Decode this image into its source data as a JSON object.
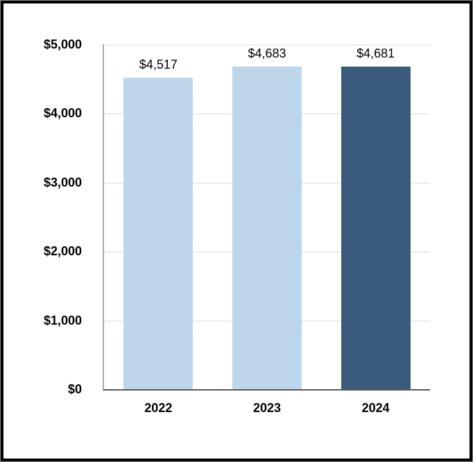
{
  "frame": {
    "outer_edge_color": "#8e8e8e",
    "border_color": "#000000",
    "background": "#ffffff"
  },
  "chart_data": {
    "type": "bar",
    "categories": [
      "2022",
      "2023",
      "2024"
    ],
    "values": [
      4517,
      4683,
      4681
    ],
    "value_labels": [
      "$4,517",
      "$4,683",
      "$4,681"
    ],
    "ylim": [
      0,
      5000
    ],
    "y_ticks": [
      0,
      1000,
      2000,
      3000,
      4000,
      5000
    ],
    "y_tick_labels": [
      "$0",
      "$1,000",
      "$2,000",
      "$3,000",
      "$4,000",
      "$5,000"
    ],
    "grid": true,
    "legend": false,
    "bar_colors": [
      "#BDD6EA",
      "#BDD6EA",
      "#3A5B7C"
    ],
    "gridline_color": "#ECECEC",
    "y_axis_color": "#A8A8A8",
    "x_axis_color": "#595959",
    "tick_label_color": "#000000",
    "value_label_color": "#000000"
  }
}
